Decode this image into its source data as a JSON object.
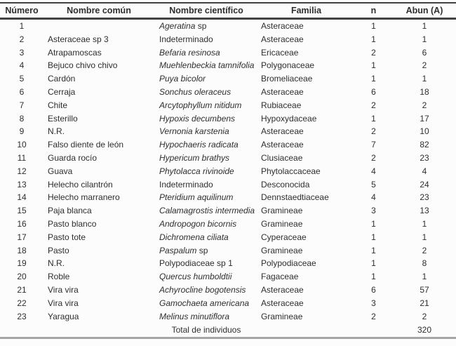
{
  "colors": {
    "text": "#2e2e2e",
    "line_dark": "#424242",
    "line_light": "#a6a6a6",
    "background": "#fcfcfc"
  },
  "table": {
    "headers": [
      "Número",
      "Nombre común",
      "Nombre científico",
      "Familia",
      "n",
      "Abun (A)"
    ],
    "rows": [
      {
        "numero": "1",
        "comun": "",
        "sci": [
          {
            "t": "Ageratina",
            "i": true
          },
          {
            "t": " sp",
            "i": false
          }
        ],
        "familia": "Asteraceae",
        "n": "1",
        "abun": "1"
      },
      {
        "numero": "2",
        "comun": "Asteraceae sp 3",
        "sci": [
          {
            "t": "Indeterminado",
            "i": false
          }
        ],
        "familia": "Asteraceae",
        "n": "1",
        "abun": "1"
      },
      {
        "numero": "3",
        "comun": "Atrapamoscas",
        "sci": [
          {
            "t": "Befaria resinosa",
            "i": true
          }
        ],
        "familia": "Ericaceae",
        "n": "2",
        "abun": "6"
      },
      {
        "numero": "4",
        "comun": "Bejuco chivo chivo",
        "sci": [
          {
            "t": "Muehlenbeckia tamnifolia",
            "i": true
          }
        ],
        "familia": "Polygonaceae",
        "n": "1",
        "abun": "2"
      },
      {
        "numero": "5",
        "comun": "Cardón",
        "sci": [
          {
            "t": "Puya bicolor",
            "i": true
          }
        ],
        "familia": "Bromeliaceae",
        "n": "1",
        "abun": "1"
      },
      {
        "numero": "6",
        "comun": "Cerraja",
        "sci": [
          {
            "t": "Sonchus oleraceus",
            "i": true
          }
        ],
        "familia": "Asteraceae",
        "n": "6",
        "abun": "18"
      },
      {
        "numero": "7",
        "comun": "Chite",
        "sci": [
          {
            "t": "Arcytophyllum nitidum",
            "i": true
          }
        ],
        "familia": "Rubiaceae",
        "n": "2",
        "abun": "2"
      },
      {
        "numero": "8",
        "comun": "Esterillo",
        "sci": [
          {
            "t": "Hypoxis decumbens",
            "i": true
          }
        ],
        "familia": "Hypoxydaceae",
        "n": "1",
        "abun": "17"
      },
      {
        "numero": "9",
        "comun": "N.R.",
        "sci": [
          {
            "t": "Vernonia karstenia",
            "i": true
          }
        ],
        "familia": "Asteraceae",
        "n": "2",
        "abun": "10"
      },
      {
        "numero": "10",
        "comun": "Falso diente de león",
        "sci": [
          {
            "t": "Hypochaeris radicata",
            "i": true
          }
        ],
        "familia": "Asteraceae",
        "n": "7",
        "abun": "82"
      },
      {
        "numero": "11",
        "comun": "Guarda rocío",
        "sci": [
          {
            "t": "Hypericum brathys",
            "i": true
          }
        ],
        "familia": "Clusiaceae",
        "n": "2",
        "abun": "23"
      },
      {
        "numero": "12",
        "comun": "Guava",
        "sci": [
          {
            "t": "Phytolacca rivinoide",
            "i": true
          }
        ],
        "familia": "Phytolaccaceae",
        "n": "4",
        "abun": "4"
      },
      {
        "numero": "13",
        "comun": "Helecho cilantrón",
        "sci": [
          {
            "t": "Indeterminado",
            "i": false
          }
        ],
        "familia": "Desconocida",
        "n": "5",
        "abun": "24"
      },
      {
        "numero": "14",
        "comun": "Helecho marranero",
        "sci": [
          {
            "t": "Pteridium aquilinum",
            "i": true
          }
        ],
        "familia": "Dennstaedtiaceae",
        "n": "4",
        "abun": "23"
      },
      {
        "numero": "15",
        "comun": "Paja blanca",
        "sci": [
          {
            "t": "Calamagrostis intermedia",
            "i": true
          }
        ],
        "familia": "Gramineae",
        "n": "3",
        "abun": "13"
      },
      {
        "numero": "16",
        "comun": "Pasto blanco",
        "sci": [
          {
            "t": "Andropogon bicornis",
            "i": true
          }
        ],
        "familia": "Gramineae",
        "n": "1",
        "abun": "1"
      },
      {
        "numero": "17",
        "comun": "Pasto tote",
        "sci": [
          {
            "t": "Dichromena ciliata",
            "i": true
          }
        ],
        "familia": "Cyperaceae",
        "n": "1",
        "abun": "1"
      },
      {
        "numero": "18",
        "comun": "Pasto",
        "sci": [
          {
            "t": "Paspalum",
            "i": true
          },
          {
            "t": " sp",
            "i": false
          }
        ],
        "familia": "Gramineae",
        "n": "1",
        "abun": "2"
      },
      {
        "numero": "19",
        "comun": "N.R.",
        "sci": [
          {
            "t": "Polypodiaceae sp 1",
            "i": false
          }
        ],
        "familia": "Polypodiaceae",
        "n": "1",
        "abun": "8"
      },
      {
        "numero": "20",
        "comun": "Roble",
        "sci": [
          {
            "t": "Quercus humboldtii",
            "i": true
          }
        ],
        "familia": "Fagaceae",
        "n": "1",
        "abun": "1"
      },
      {
        "numero": "21",
        "comun": "Vira vira",
        "sci": [
          {
            "t": "Achyrocline bogotensis",
            "i": true
          }
        ],
        "familia": "Asteraceae",
        "n": "6",
        "abun": "57"
      },
      {
        "numero": "22",
        "comun": "Vira vira",
        "sci": [
          {
            "t": "Gamochaeta americana",
            "i": true
          }
        ],
        "familia": "Asteraceae",
        "n": "3",
        "abun": "21"
      },
      {
        "numero": "23",
        "comun": "Yaragua",
        "sci": [
          {
            "t": "Melinus minutiflora",
            "i": true
          }
        ],
        "familia": "Gramineae",
        "n": "2",
        "abun": "2"
      }
    ],
    "footer_label": "Total de individuos",
    "footer_total": "320"
  }
}
